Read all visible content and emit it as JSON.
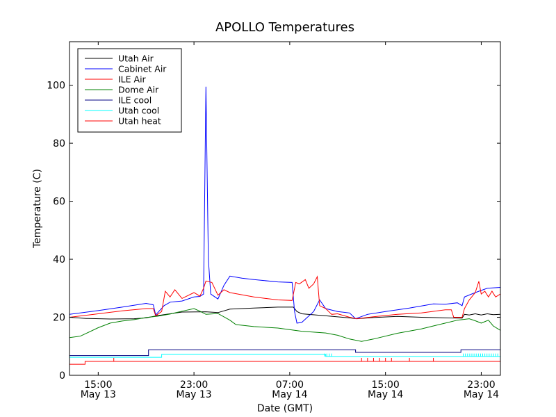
{
  "chart_data": {
    "type": "line",
    "title": "APOLLO Temperatures",
    "xlabel": "Date (GMT)",
    "ylabel": "Temperature (C)",
    "xlim": [
      12.6,
      48.6
    ],
    "ylim": [
      0,
      115
    ],
    "grid": false,
    "legend_position": "top-left",
    "x_ticks": [
      {
        "value": 15,
        "label": "15:00",
        "sublabel": "May 13"
      },
      {
        "value": 23,
        "label": "23:00",
        "sublabel": "May 13"
      },
      {
        "value": 31,
        "label": "07:00",
        "sublabel": "May 14"
      },
      {
        "value": 39,
        "label": "15:00",
        "sublabel": "May 14"
      },
      {
        "value": 47,
        "label": "23:00",
        "sublabel": "May 14"
      }
    ],
    "y_ticks": [
      {
        "value": 0,
        "label": "0"
      },
      {
        "value": 20,
        "label": "20"
      },
      {
        "value": 40,
        "label": "40"
      },
      {
        "value": 60,
        "label": "60"
      },
      {
        "value": 80,
        "label": "80"
      },
      {
        "value": 100,
        "label": "100"
      }
    ],
    "series": [
      {
        "name": "Utah Air",
        "color": "#000000",
        "points": [
          [
            12.6,
            20
          ],
          [
            14,
            19.6
          ],
          [
            16,
            19.4
          ],
          [
            18,
            19.5
          ],
          [
            19,
            19.8
          ],
          [
            20,
            20.6
          ],
          [
            22,
            21.8
          ],
          [
            24,
            21.9
          ],
          [
            25,
            21.6
          ],
          [
            26,
            22.8
          ],
          [
            28,
            23.2
          ],
          [
            30,
            23.5
          ],
          [
            31.3,
            23.5
          ],
          [
            31.6,
            22
          ],
          [
            32,
            21.2
          ],
          [
            34,
            20.5
          ],
          [
            36,
            19.8
          ],
          [
            36.6,
            19.5
          ],
          [
            38,
            19.9
          ],
          [
            40,
            20.3
          ],
          [
            42,
            20
          ],
          [
            44,
            19.8
          ],
          [
            45.4,
            19.7
          ],
          [
            45.6,
            21
          ],
          [
            46,
            20.8
          ],
          [
            46.5,
            21.2
          ],
          [
            47,
            20.8
          ],
          [
            47.5,
            21.2
          ],
          [
            48,
            20.9
          ],
          [
            48.6,
            21
          ]
        ]
      },
      {
        "name": "Cabinet Air",
        "color": "#0000ff",
        "points": [
          [
            12.6,
            21
          ],
          [
            15,
            22.3
          ],
          [
            17,
            23.5
          ],
          [
            19,
            24.8
          ],
          [
            19.6,
            24.3
          ],
          [
            19.8,
            20.8
          ],
          [
            20.5,
            24
          ],
          [
            21,
            25.2
          ],
          [
            22,
            25.6
          ],
          [
            23,
            27
          ],
          [
            23.5,
            27.2
          ],
          [
            23.8,
            28
          ],
          [
            24,
            99.5
          ],
          [
            24.2,
            40
          ],
          [
            24.4,
            28
          ],
          [
            25,
            26.3
          ],
          [
            25.5,
            31
          ],
          [
            26,
            34.2
          ],
          [
            27,
            33.5
          ],
          [
            28,
            33
          ],
          [
            30,
            32.2
          ],
          [
            31.2,
            32
          ],
          [
            31.4,
            22
          ],
          [
            31.6,
            18
          ],
          [
            32,
            18.2
          ],
          [
            33,
            22
          ],
          [
            33.5,
            26
          ],
          [
            34,
            23
          ],
          [
            35,
            22
          ],
          [
            36,
            21.5
          ],
          [
            36.5,
            19.5
          ],
          [
            37.5,
            21
          ],
          [
            39,
            22
          ],
          [
            41,
            23.2
          ],
          [
            43,
            24.6
          ],
          [
            44,
            24.5
          ],
          [
            45,
            25
          ],
          [
            45.4,
            24
          ],
          [
            45.6,
            27
          ],
          [
            46.5,
            28.5
          ],
          [
            47.5,
            30
          ],
          [
            48.6,
            30.3
          ]
        ]
      },
      {
        "name": "ILE Air",
        "color": "#ff0000",
        "points": [
          [
            12.6,
            20
          ],
          [
            15,
            21.2
          ],
          [
            17,
            22.2
          ],
          [
            19,
            23
          ],
          [
            19.6,
            23
          ],
          [
            19.8,
            20.5
          ],
          [
            20.3,
            22
          ],
          [
            20.6,
            29
          ],
          [
            21,
            27
          ],
          [
            21.4,
            29.5
          ],
          [
            22,
            26.5
          ],
          [
            23,
            28.5
          ],
          [
            23.5,
            27.3
          ],
          [
            23.8,
            30
          ],
          [
            24,
            32.5
          ],
          [
            24.5,
            32
          ],
          [
            25,
            27.6
          ],
          [
            25.5,
            29.5
          ],
          [
            26,
            28.5
          ],
          [
            28,
            27
          ],
          [
            30,
            26
          ],
          [
            31.2,
            25.8
          ],
          [
            31.5,
            32
          ],
          [
            31.8,
            31.5
          ],
          [
            32.3,
            33
          ],
          [
            32.6,
            30
          ],
          [
            33,
            31.5
          ],
          [
            33.3,
            34
          ],
          [
            33.5,
            24
          ],
          [
            34,
            23
          ],
          [
            34.5,
            21
          ],
          [
            35,
            21.2
          ],
          [
            36,
            20
          ],
          [
            36.6,
            19.5
          ],
          [
            38,
            20.2
          ],
          [
            40,
            21
          ],
          [
            42,
            21.5
          ],
          [
            44,
            22.6
          ],
          [
            44.5,
            22.6
          ],
          [
            44.7,
            20
          ],
          [
            45.4,
            20
          ],
          [
            45.6,
            23
          ],
          [
            46,
            26
          ],
          [
            46.5,
            28.5
          ],
          [
            46.8,
            32.4
          ],
          [
            47,
            28
          ],
          [
            47.3,
            29
          ],
          [
            47.6,
            27
          ],
          [
            47.9,
            29
          ],
          [
            48.2,
            27
          ],
          [
            48.6,
            28
          ]
        ]
      },
      {
        "name": "Dome Air",
        "color": "#008000",
        "points": [
          [
            12.6,
            13
          ],
          [
            13.5,
            13.5
          ],
          [
            15,
            16.4
          ],
          [
            16,
            18
          ],
          [
            17,
            18.7
          ],
          [
            18,
            19.2
          ],
          [
            19,
            19.9
          ],
          [
            20,
            20.4
          ],
          [
            21,
            21.1
          ],
          [
            22,
            22.1
          ],
          [
            23,
            23
          ],
          [
            23.5,
            22.1
          ],
          [
            24,
            21
          ],
          [
            25,
            21.3
          ],
          [
            26,
            19
          ],
          [
            26.5,
            17.5
          ],
          [
            28,
            16.8
          ],
          [
            30,
            16.3
          ],
          [
            32,
            15.2
          ],
          [
            34,
            14.6
          ],
          [
            35,
            13.8
          ],
          [
            36,
            12.5
          ],
          [
            37,
            11.7
          ],
          [
            38,
            12.5
          ],
          [
            40,
            14.5
          ],
          [
            42,
            16
          ],
          [
            43,
            17
          ],
          [
            44,
            18
          ],
          [
            45,
            19
          ],
          [
            46,
            19.5
          ],
          [
            46.5,
            18.8
          ],
          [
            47,
            18
          ],
          [
            47.6,
            19
          ],
          [
            48,
            17
          ],
          [
            48.6,
            15.5
          ]
        ]
      },
      {
        "name": "ILE cool",
        "color": "#000080",
        "points": [
          [
            12.6,
            6.8
          ],
          [
            19.2,
            6.8
          ],
          [
            19.2,
            8.8
          ],
          [
            36.5,
            8.8
          ],
          [
            36.5,
            7.9
          ],
          [
            45.3,
            7.9
          ],
          [
            45.3,
            8.8
          ],
          [
            48.6,
            8.8
          ]
        ]
      },
      {
        "name": "Utah cool",
        "color": "#00ffff",
        "points": [
          [
            12.6,
            6.2
          ],
          [
            20.3,
            6.2
          ],
          [
            20.3,
            7.2
          ],
          [
            34,
            7.2
          ],
          [
            34,
            6.5
          ],
          [
            48.6,
            6.5
          ]
        ]
      },
      {
        "name": "Utah heat",
        "color": "#ff0000",
        "points": [
          [
            12.6,
            3.8
          ],
          [
            13.9,
            3.8
          ],
          [
            13.9,
            4.8
          ],
          [
            48.6,
            4.8
          ]
        ]
      }
    ]
  }
}
